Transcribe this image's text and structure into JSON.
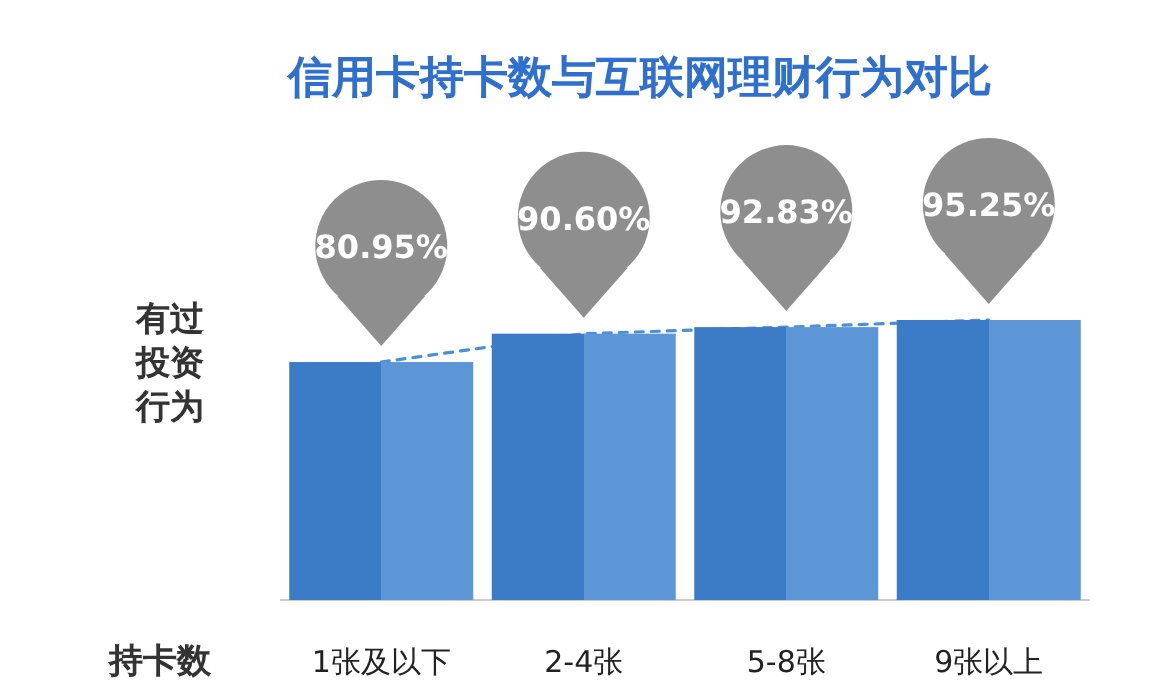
{
  "chart_data": {
    "type": "bar",
    "title": "信用卡持卡数与互联网理财行为对比",
    "xlabel": "持卡数",
    "categories": [
      "1张及以下",
      "2-4张",
      "5-8张",
      "9张以上"
    ],
    "series": [
      {
        "color": "#3f83d0",
        "values": [
          80.95,
          90.6,
          92.83,
          95.25
        ],
        "value_labels": [
          "80.95%",
          "90.60%",
          "92.83%",
          "95.25%"
        ]
      },
      {
        "type": "line",
        "name": "有过投资行为",
        "color": "#4a90d9",
        "line_style": "dashed",
        "values": [
          80.95,
          90.6,
          92.83,
          95.25
        ]
      }
    ]
  }
}
